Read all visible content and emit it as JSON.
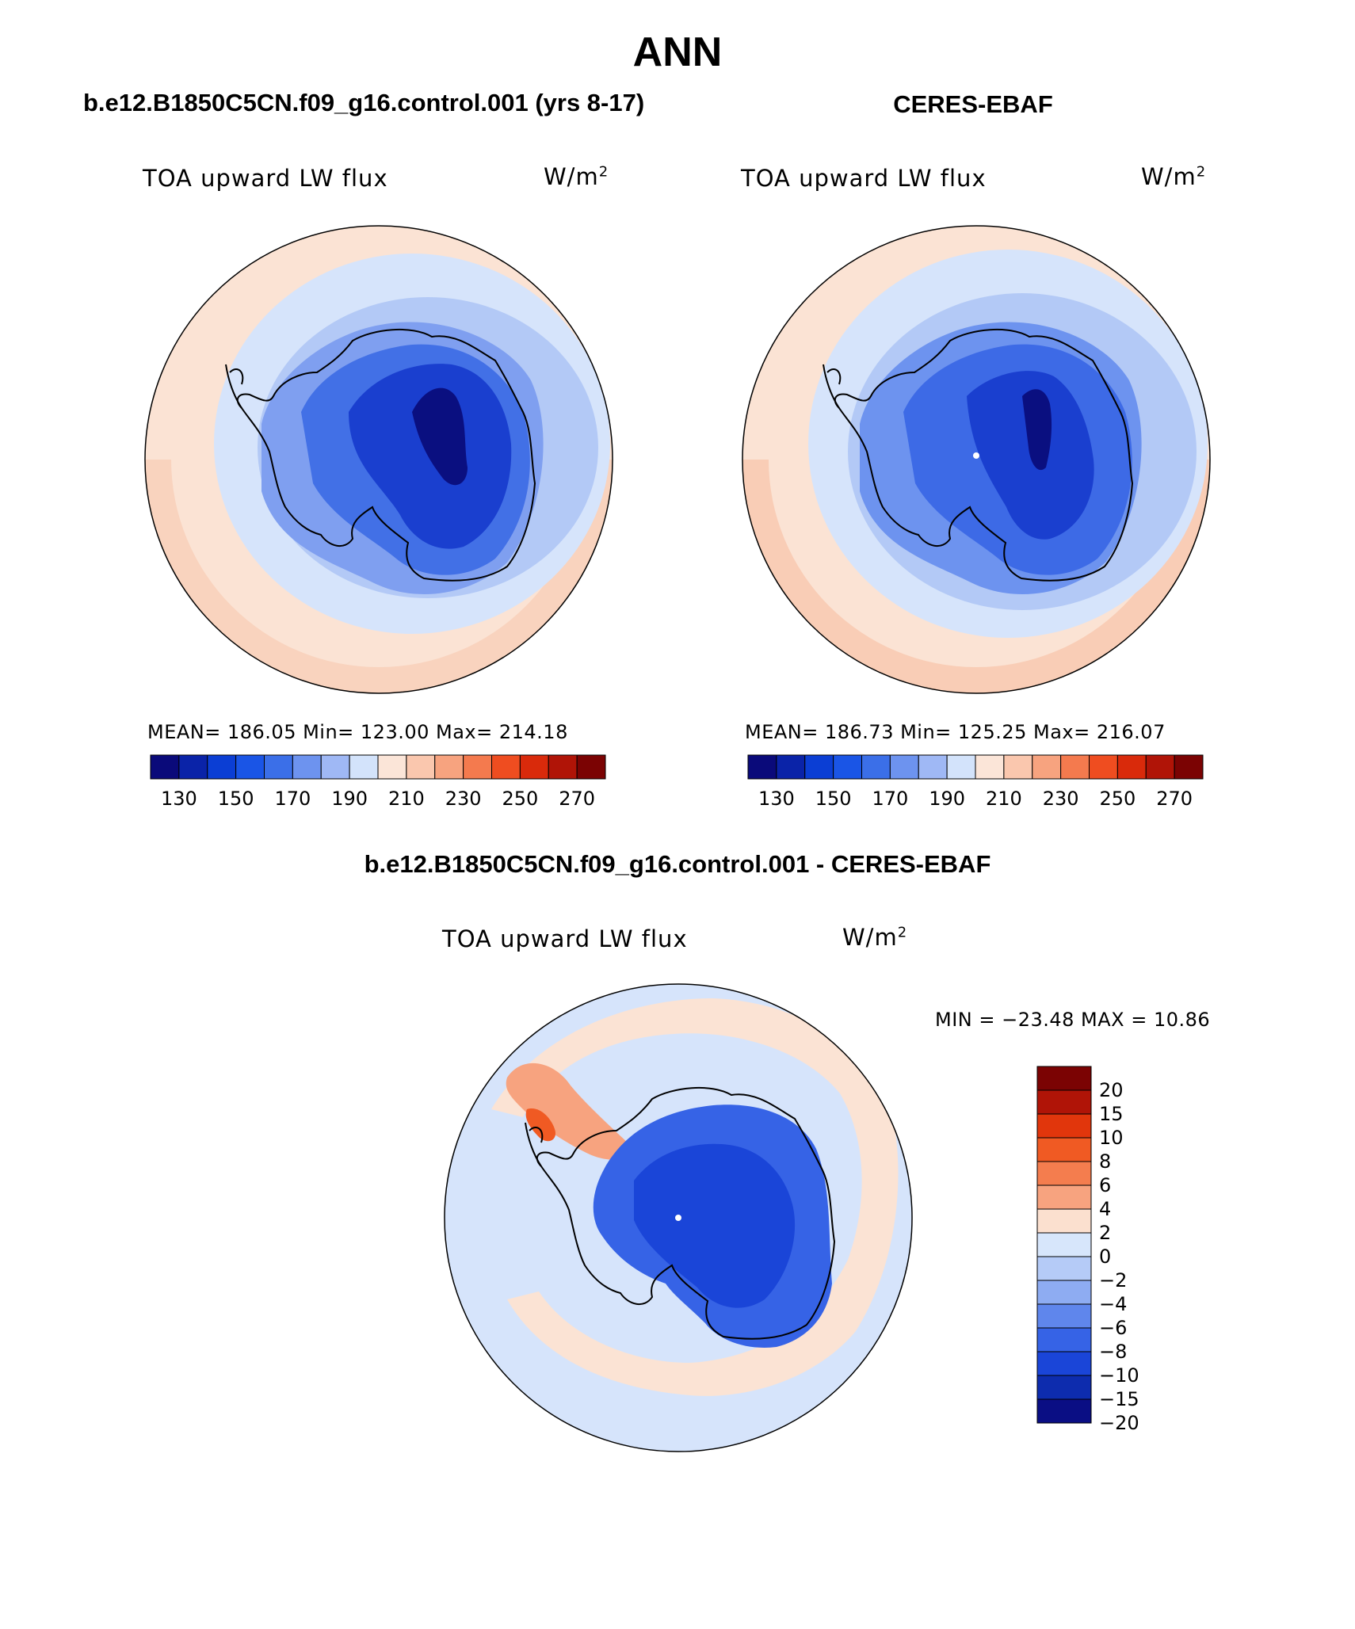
{
  "title": "ANN",
  "panels": {
    "model": {
      "case": "b.e12.B1850C5CN.f09_g16.control.001 (yrs 8-17)",
      "variable": "TOA upward LW flux",
      "units_base": "W/m",
      "units_exp": "2",
      "stats": "MEAN=  186.05   Min=  123.00   Max=  214.18"
    },
    "obs": {
      "case": "CERES-EBAF",
      "variable": "TOA upward LW flux",
      "units_base": "W/m",
      "units_exp": "2",
      "stats": "MEAN=  186.73   Min=  125.25   Max=  216.07"
    },
    "diff": {
      "case": "b.e12.B1850C5CN.f09_g16.control.001 - CERES-EBAF",
      "variable": "TOA upward LW flux",
      "units_base": "W/m",
      "units_exp": "2",
      "stats": "MIN = −23.48  MAX =   10.86"
    }
  },
  "colorbars": {
    "abs_colors": [
      "#0a0a7a",
      "#0a23a8",
      "#0b3ed4",
      "#1a55e6",
      "#3b6fe8",
      "#6d93ef",
      "#9fb8f5",
      "#d3e3fb",
      "#fbe5d8",
      "#fac7ae",
      "#f7a37f",
      "#f47a4e",
      "#ef4d20",
      "#d92a0b",
      "#b01407",
      "#7b0303"
    ],
    "abs_ticks": [
      "130",
      "150",
      "170",
      "190",
      "210",
      "230",
      "250",
      "270"
    ],
    "diff_colors": [
      "#7b0303",
      "#b01407",
      "#e1360c",
      "#f05a23",
      "#f47d4e",
      "#f7a37f",
      "#fbe0cf",
      "#d7e6fb",
      "#b5cbf7",
      "#8eacf2",
      "#5f86ec",
      "#3663e6",
      "#1a45d8",
      "#0d2cae",
      "#0a0e84"
    ],
    "diff_ticks": [
      "20",
      "15",
      "10",
      "8",
      "6",
      "4",
      "2",
      "0",
      "−2",
      "−4",
      "−6",
      "−8",
      "−10",
      "−15",
      "−20"
    ]
  },
  "map_colors": {
    "outer_warm": "#fbe3d4",
    "ring_warm": "#f9ccb6",
    "pale_blue": "#d6e4fb",
    "light_blue": "#b3c9f6",
    "mid_blue": "#7f9ff0",
    "blue": "#3d6ae6",
    "deep_blue": "#1a3fcf",
    "darkest": "#0a0f80",
    "coast": "#000000"
  }
}
